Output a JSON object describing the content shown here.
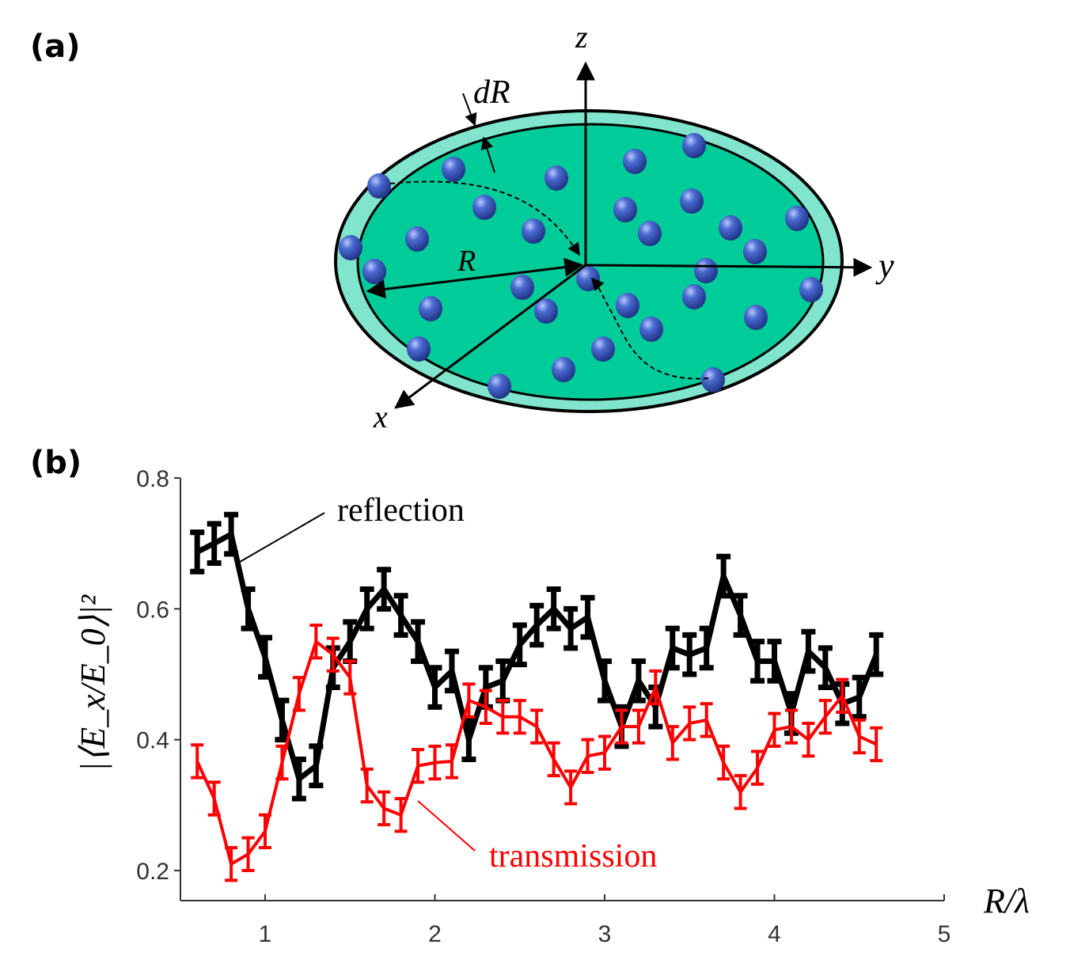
{
  "panel_a": {
    "label": "(a)",
    "axis_labels": {
      "x": "x",
      "y": "y",
      "z": "z"
    },
    "radius_label": "R",
    "shell_label": "dR",
    "colors": {
      "shell": "#80e5cc",
      "interior": "#00cc99",
      "particle": "#3f5fbf"
    }
  },
  "panel_b": {
    "label": "(b)"
  },
  "chart_data": {
    "type": "line",
    "xlabel": "R/λ",
    "ylabel": "|⟨E_x/E_0⟩|²",
    "xlim": [
      0.5,
      5
    ],
    "ylim": [
      0.15,
      0.8
    ],
    "xticks": [
      "1",
      "2",
      "3",
      "4",
      "5"
    ],
    "yticks": [
      "0.2",
      "0.4",
      "0.6",
      "0.8"
    ],
    "grid": false,
    "error_bars": true,
    "x": [
      0.6,
      0.7,
      0.8,
      0.9,
      1.0,
      1.1,
      1.2,
      1.3,
      1.4,
      1.5,
      1.6,
      1.7,
      1.8,
      1.9,
      2.0,
      2.1,
      2.2,
      2.3,
      2.4,
      2.5,
      2.6,
      2.7,
      2.8,
      2.9,
      3.0,
      3.1,
      3.2,
      3.3,
      3.4,
      3.5,
      3.6,
      3.7,
      3.8,
      3.9,
      4.0,
      4.1,
      4.2,
      4.3,
      4.4,
      4.5,
      4.6
    ],
    "series": [
      {
        "name": "reflection",
        "color": "#000000",
        "values": [
          0.687,
          0.7,
          0.714,
          0.6,
          0.526,
          0.43,
          0.34,
          0.36,
          0.51,
          0.55,
          0.6,
          0.63,
          0.59,
          0.55,
          0.48,
          0.505,
          0.4,
          0.48,
          0.49,
          0.545,
          0.575,
          0.6,
          0.57,
          0.587,
          0.49,
          0.42,
          0.49,
          0.45,
          0.54,
          0.53,
          0.54,
          0.65,
          0.59,
          0.52,
          0.52,
          0.44,
          0.535,
          0.51,
          0.455,
          0.465,
          0.53
        ],
        "error": 0.03
      },
      {
        "name": "transmission",
        "color": "#ff0000",
        "values": [
          0.367,
          0.31,
          0.21,
          0.225,
          0.26,
          0.365,
          0.47,
          0.55,
          0.53,
          0.495,
          0.33,
          0.295,
          0.285,
          0.36,
          0.365,
          0.367,
          0.46,
          0.45,
          0.435,
          0.435,
          0.42,
          0.37,
          0.327,
          0.375,
          0.38,
          0.42,
          0.42,
          0.48,
          0.395,
          0.425,
          0.43,
          0.365,
          0.32,
          0.357,
          0.415,
          0.42,
          0.4,
          0.435,
          0.467,
          0.405,
          0.393
        ],
        "error": 0.025
      }
    ]
  }
}
